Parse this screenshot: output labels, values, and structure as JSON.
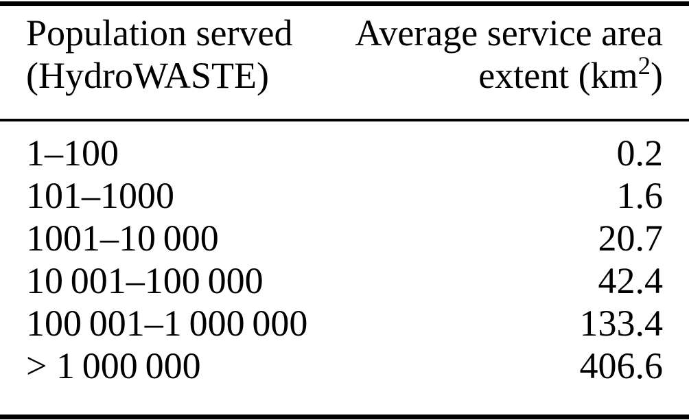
{
  "table": {
    "header": {
      "col1_line1": "Population served",
      "col1_line2": "(HydroWASTE)",
      "col2_line1": "Average service area",
      "col2_line2_pre": "extent (km",
      "col2_line2_sup": "2",
      "col2_line2_post": ")"
    },
    "rows": [
      {
        "population": "1–100",
        "extent": "0.2"
      },
      {
        "population": "101–1000",
        "extent": "1.6"
      },
      {
        "population": "1001–10 000",
        "extent": "20.7"
      },
      {
        "population": "10 001–100 000",
        "extent": "42.4"
      },
      {
        "population": "100 001–1 000 000",
        "extent": "133.4"
      },
      {
        "population": "> 1 000 000",
        "extent": "406.6"
      }
    ]
  },
  "chart_data": {
    "type": "table",
    "title": "",
    "columns": [
      "Population served (HydroWASTE)",
      "Average service area extent (km2)"
    ],
    "categories": [
      "1-100",
      "101-1000",
      "1001-10 000",
      "10 001-100 000",
      "100 001-1 000 000",
      "> 1 000 000"
    ],
    "values": [
      0.2,
      1.6,
      20.7,
      42.4,
      133.4,
      406.6
    ]
  },
  "colors": {
    "text": "#000000",
    "background": "#ffffff",
    "rule": "#000000"
  }
}
